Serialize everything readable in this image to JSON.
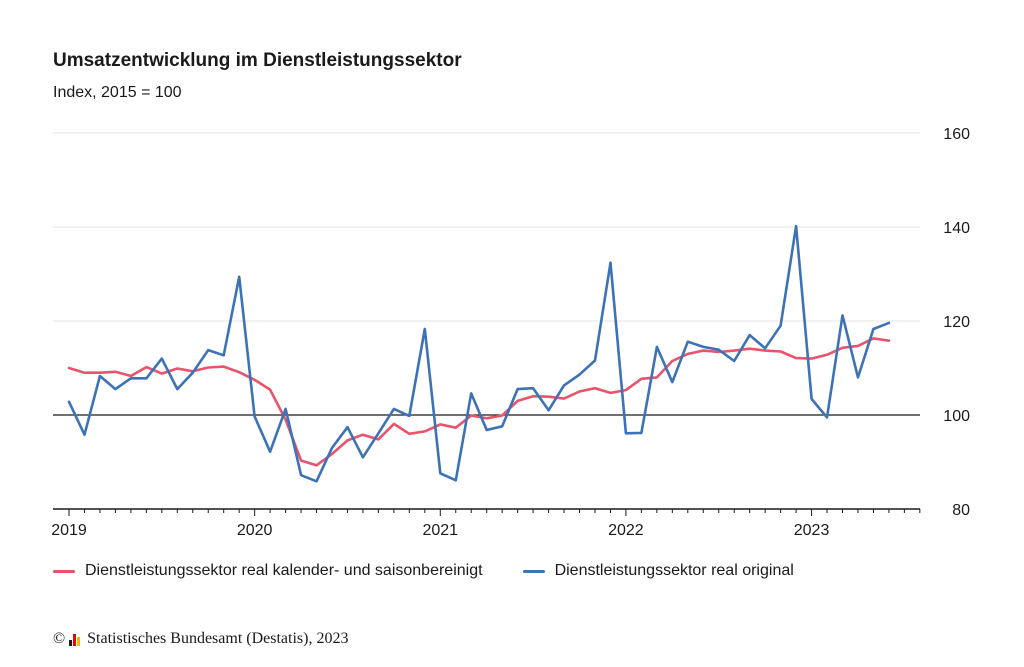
{
  "chart_data": {
    "type": "line",
    "title": "Umsatzentwicklung im Dienstleistungssektor",
    "subtitle": "Index, 2015 = 100",
    "ylim": [
      80,
      160
    ],
    "yticks": [
      "160",
      "140",
      "120",
      "100",
      "80"
    ],
    "xticks": [
      "2019",
      "2020",
      "2021",
      "2022",
      "2023"
    ],
    "reference_line": 100,
    "x_start": "2019-01",
    "series": [
      {
        "name": "Dienstleistungssektor real kalender- und saisonbereinigt",
        "color": "#e8546b",
        "values": [
          110.0,
          109.0,
          109.0,
          109.2,
          108.3,
          110.2,
          108.8,
          109.9,
          109.3,
          110.1,
          110.3,
          109.1,
          107.5,
          105.4,
          99.0,
          90.3,
          89.3,
          91.7,
          94.6,
          95.8,
          94.8,
          98.1,
          96.0,
          96.5,
          98.0,
          97.3,
          99.9,
          99.3,
          99.9,
          103.0,
          104.0,
          103.9,
          103.5,
          105.0,
          105.7,
          104.7,
          105.3,
          107.7,
          108.0,
          111.5,
          113.0,
          113.7,
          113.4,
          113.7,
          114.1,
          113.7,
          113.5,
          112.1,
          112.0,
          112.8,
          114.3,
          114.7,
          116.3,
          115.8
        ]
      },
      {
        "name": "Dienstleistungssektor real original",
        "color": "#3d72b6",
        "values": [
          102.8,
          95.8,
          108.3,
          105.5,
          107.8,
          107.8,
          112.0,
          105.5,
          109.0,
          113.8,
          112.7,
          129.4,
          99.7,
          92.2,
          101.3,
          87.2,
          85.9,
          93.0,
          97.4,
          91.0,
          96.1,
          101.3,
          99.8,
          118.3,
          87.6,
          86.1,
          104.6,
          96.8,
          97.6,
          105.5,
          105.7,
          101.0,
          106.3,
          108.6,
          111.6,
          132.4,
          96.1,
          96.2,
          114.5,
          107.0,
          115.6,
          114.5,
          113.9,
          111.5,
          117.0,
          114.2,
          119.0,
          140.2,
          103.4,
          99.5,
          121.2,
          108.0,
          118.3,
          119.6
        ]
      }
    ]
  },
  "legend": {
    "item1": "Dienstleistungssektor real kalender- und saisonbereinigt",
    "item2": "Dienstleistungssektor real original"
  },
  "source": {
    "copyright": "©",
    "text": "Statistisches Bundesamt (Destatis), 2023",
    "logo_colors": [
      "#1a1a1a",
      "#e30613",
      "#f5b800"
    ]
  }
}
